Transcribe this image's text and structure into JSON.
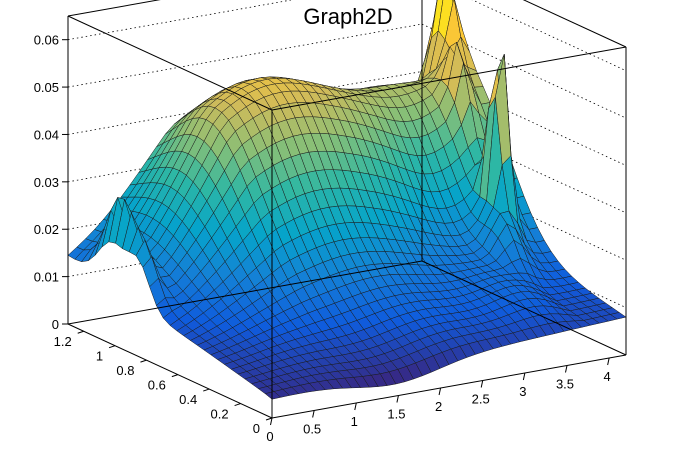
{
  "chart_data": {
    "type": "surface3d",
    "title": "Graph2D",
    "xlim": [
      0,
      4.2
    ],
    "ylim": [
      0,
      1.3
    ],
    "zlim": [
      0,
      0.065
    ],
    "x_ticks": [
      "0",
      "0.5",
      "1",
      "1.5",
      "2",
      "2.5",
      "3",
      "3.5",
      "4"
    ],
    "y_ticks": [
      "0",
      "0.2",
      "0.4",
      "0.6",
      "0.8",
      "1",
      "1.2"
    ],
    "z_ticks": [
      "0",
      "0.01",
      "0.02",
      "0.03",
      "0.04",
      "0.05",
      "0.06"
    ],
    "grid": true,
    "colormap": [
      "#352a87",
      "#0f5cdd",
      "#1481d6",
      "#06a4ca",
      "#2eb7a4",
      "#87bf77",
      "#d1bb59",
      "#fec832",
      "#f9fb0e"
    ],
    "surface_shape": [
      {
        "x": 0.0,
        "y": 0.0,
        "z": 0.004
      },
      {
        "x": 0.0,
        "y": 1.3,
        "z": 0.012
      },
      {
        "x": 1.3,
        "y": 0.65,
        "z": 0.025
      },
      {
        "x": 4.2,
        "y": 0.0,
        "z": 0.018
      },
      {
        "x": 4.2,
        "y": 1.3,
        "z": 0.038
      },
      {
        "x": 3.85,
        "y": 0.6,
        "z": 0.06
      },
      {
        "x": 0.1,
        "y": 1.0,
        "z": 0.03
      }
    ]
  }
}
